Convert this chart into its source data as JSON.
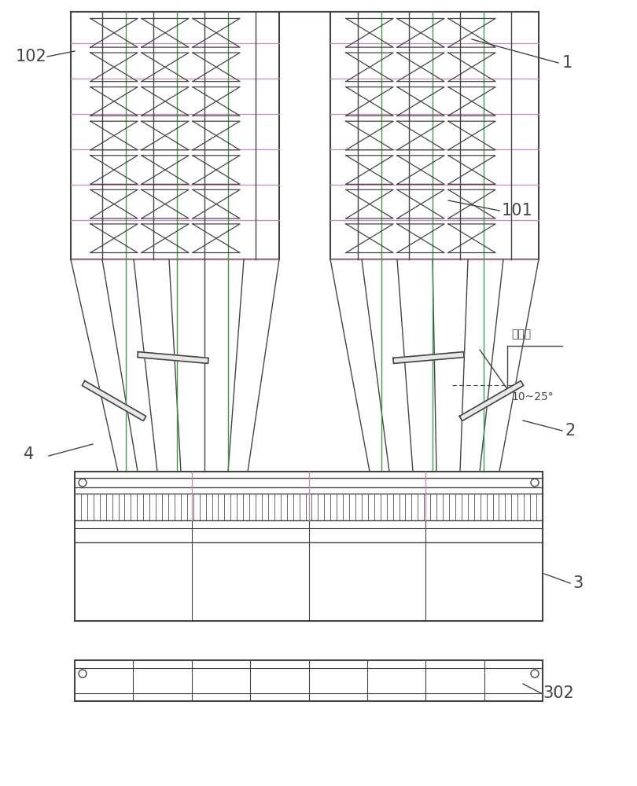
{
  "bg_color": "#ffffff",
  "line_color": "#444444",
  "line_magenta": "#cc88bb",
  "line_green": "#449944",
  "figsize": [
    8.1,
    10.0
  ],
  "dpi": 100,
  "annotation_vertical": "竖直面",
  "annotation_angle": "10~25°"
}
